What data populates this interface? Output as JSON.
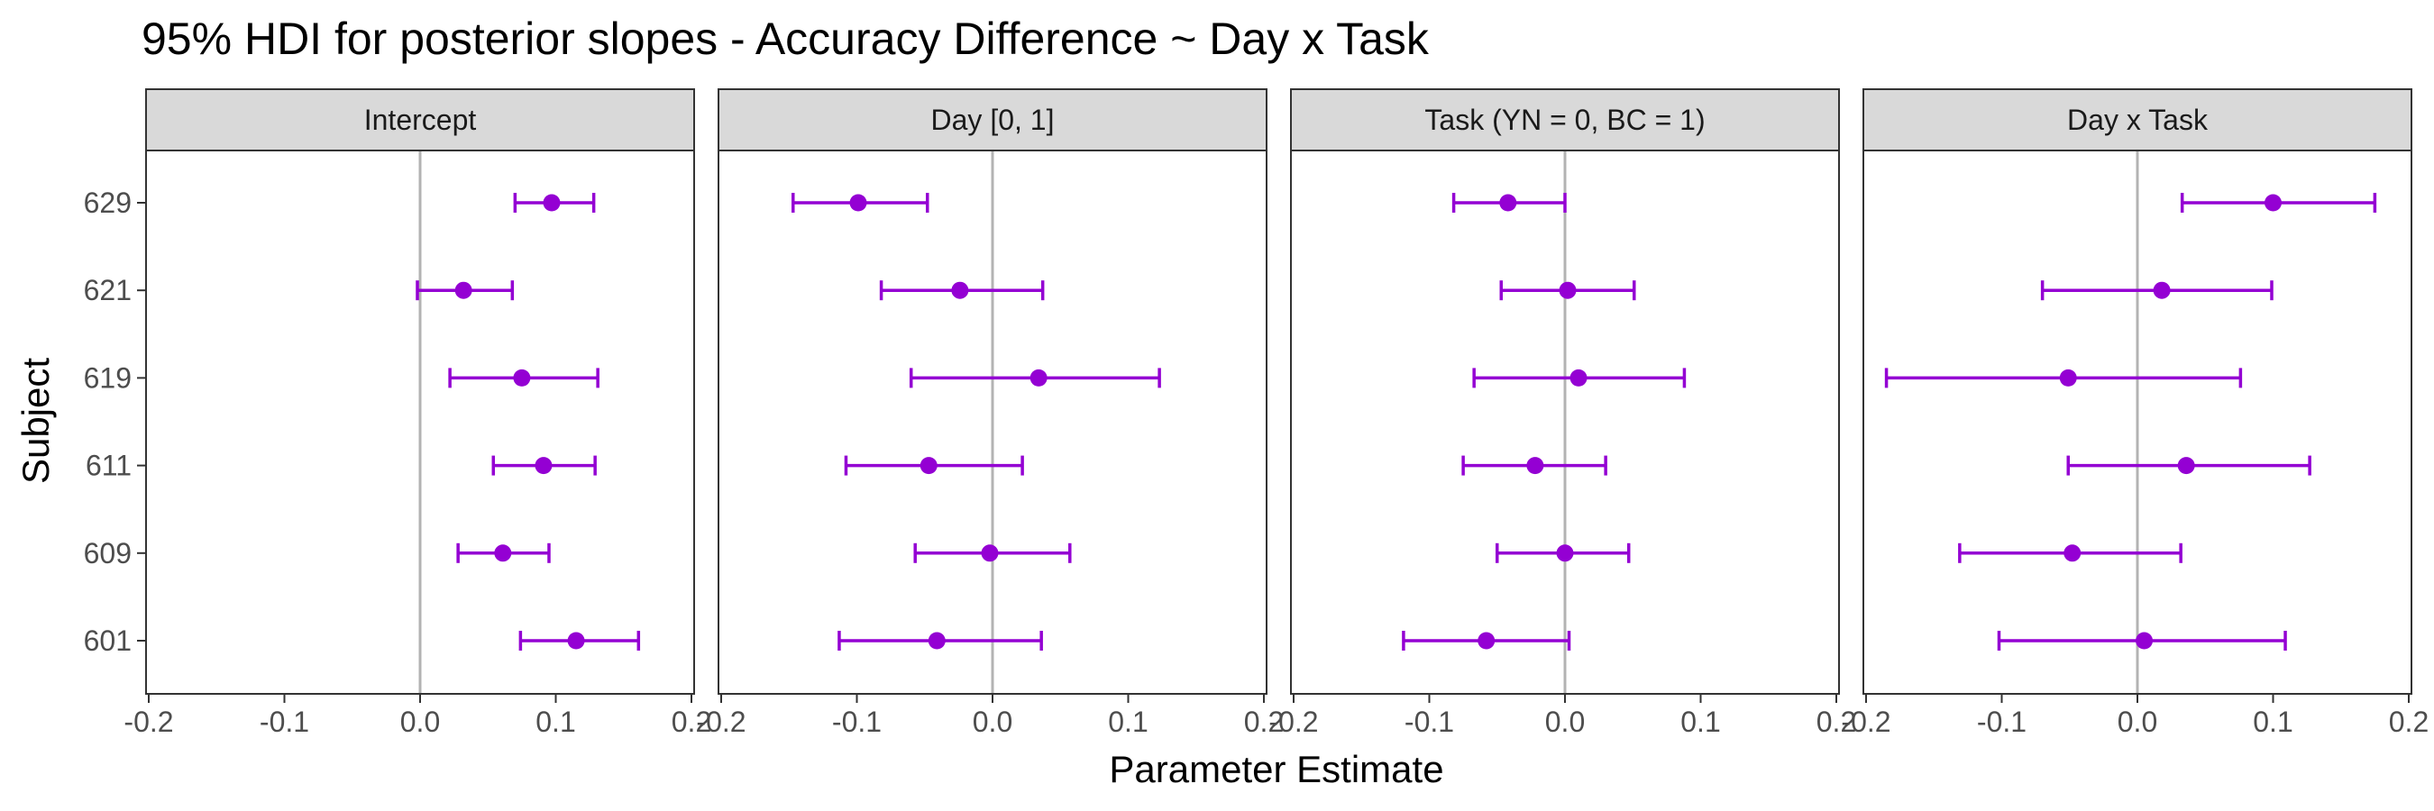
{
  "chart_data": {
    "type": "errorbar",
    "title": "95% HDI for posterior slopes - Accuracy Difference ~ Day x Task",
    "xlabel": "Parameter Estimate",
    "ylabel": "Subject",
    "xlim": [
      -0.2,
      0.2
    ],
    "xticks": [
      "-0.2",
      "-0.1",
      "0.0",
      "0.1",
      "0.2"
    ],
    "subjects": [
      "629",
      "621",
      "619",
      "611",
      "609",
      "601"
    ],
    "reference_line": 0,
    "grid": false,
    "colors": {
      "point": "#9400D3",
      "reference_line": "#b3b3b3",
      "strip_fill": "#d9d9d9",
      "panel_border": "#333333"
    },
    "panels": [
      {
        "name": "Intercept",
        "points": [
          {
            "subject": "629",
            "estimate": 0.097,
            "lower": 0.07,
            "upper": 0.128
          },
          {
            "subject": "621",
            "estimate": 0.032,
            "lower": -0.002,
            "upper": 0.068
          },
          {
            "subject": "619",
            "estimate": 0.075,
            "lower": 0.022,
            "upper": 0.131
          },
          {
            "subject": "611",
            "estimate": 0.091,
            "lower": 0.054,
            "upper": 0.129
          },
          {
            "subject": "609",
            "estimate": 0.061,
            "lower": 0.028,
            "upper": 0.095
          },
          {
            "subject": "601",
            "estimate": 0.115,
            "lower": 0.074,
            "upper": 0.161
          }
        ]
      },
      {
        "name": "Day [0, 1]",
        "points": [
          {
            "subject": "629",
            "estimate": -0.099,
            "lower": -0.147,
            "upper": -0.048
          },
          {
            "subject": "621",
            "estimate": -0.024,
            "lower": -0.082,
            "upper": 0.037
          },
          {
            "subject": "619",
            "estimate": 0.034,
            "lower": -0.06,
            "upper": 0.123
          },
          {
            "subject": "611",
            "estimate": -0.047,
            "lower": -0.108,
            "upper": 0.022
          },
          {
            "subject": "609",
            "estimate": -0.002,
            "lower": -0.057,
            "upper": 0.057
          },
          {
            "subject": "601",
            "estimate": -0.041,
            "lower": -0.113,
            "upper": 0.036
          }
        ]
      },
      {
        "name": "Task (YN = 0, BC = 1)",
        "points": [
          {
            "subject": "629",
            "estimate": -0.042,
            "lower": -0.082,
            "upper": 0.0
          },
          {
            "subject": "621",
            "estimate": 0.002,
            "lower": -0.047,
            "upper": 0.051
          },
          {
            "subject": "619",
            "estimate": 0.01,
            "lower": -0.067,
            "upper": 0.088
          },
          {
            "subject": "611",
            "estimate": -0.022,
            "lower": -0.075,
            "upper": 0.03
          },
          {
            "subject": "609",
            "estimate": 0.0,
            "lower": -0.05,
            "upper": 0.047
          },
          {
            "subject": "601",
            "estimate": -0.058,
            "lower": -0.119,
            "upper": 0.003
          }
        ]
      },
      {
        "name": "Day x Task",
        "points": [
          {
            "subject": "629",
            "estimate": 0.1,
            "lower": 0.033,
            "upper": 0.175
          },
          {
            "subject": "621",
            "estimate": 0.018,
            "lower": -0.07,
            "upper": 0.099
          },
          {
            "subject": "619",
            "estimate": -0.051,
            "lower": -0.185,
            "upper": 0.076
          },
          {
            "subject": "611",
            "estimate": 0.036,
            "lower": -0.051,
            "upper": 0.127
          },
          {
            "subject": "609",
            "estimate": -0.048,
            "lower": -0.131,
            "upper": 0.032
          },
          {
            "subject": "601",
            "estimate": 0.005,
            "lower": -0.102,
            "upper": 0.109
          }
        ]
      }
    ]
  }
}
